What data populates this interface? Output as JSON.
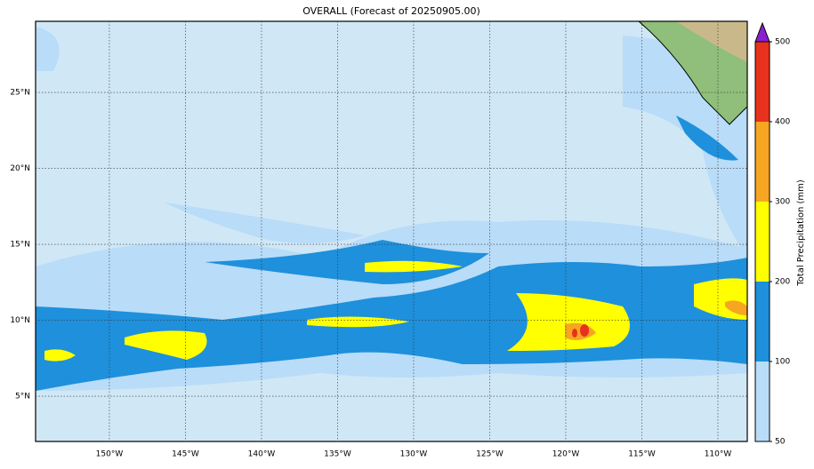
{
  "chart_data": {
    "type": "map",
    "title": "OVERALL (Forecast of 20250905.00)",
    "xlim": [
      -154.85,
      -108.07
    ],
    "ylim": [
      2.02,
      29.68
    ],
    "xticks": [
      {
        "value": -150,
        "label": "150°W"
      },
      {
        "value": -145,
        "label": "145°W"
      },
      {
        "value": -140,
        "label": "140°W"
      },
      {
        "value": -135,
        "label": "135°W"
      },
      {
        "value": -130,
        "label": "130°W"
      },
      {
        "value": -125,
        "label": "125°W"
      },
      {
        "value": -120,
        "label": "120°W"
      },
      {
        "value": -115,
        "label": "115°W"
      },
      {
        "value": -110,
        "label": "110°W"
      }
    ],
    "yticks": [
      {
        "value": 5,
        "label": "5°N"
      },
      {
        "value": 10,
        "label": "10°N"
      },
      {
        "value": 15,
        "label": "15°N"
      },
      {
        "value": 20,
        "label": "20°N"
      },
      {
        "value": 25,
        "label": "25°N"
      }
    ],
    "grid": true,
    "colorbar": {
      "label": "Total Precipitation (mm)",
      "ticks": [
        50,
        100,
        200,
        300,
        400,
        500
      ],
      "colors": [
        "#b9dcf8",
        "#1e90dc",
        "#ffff00",
        "#f6a623",
        "#e8321e"
      ],
      "extend_color": "#8a1fd0"
    }
  }
}
